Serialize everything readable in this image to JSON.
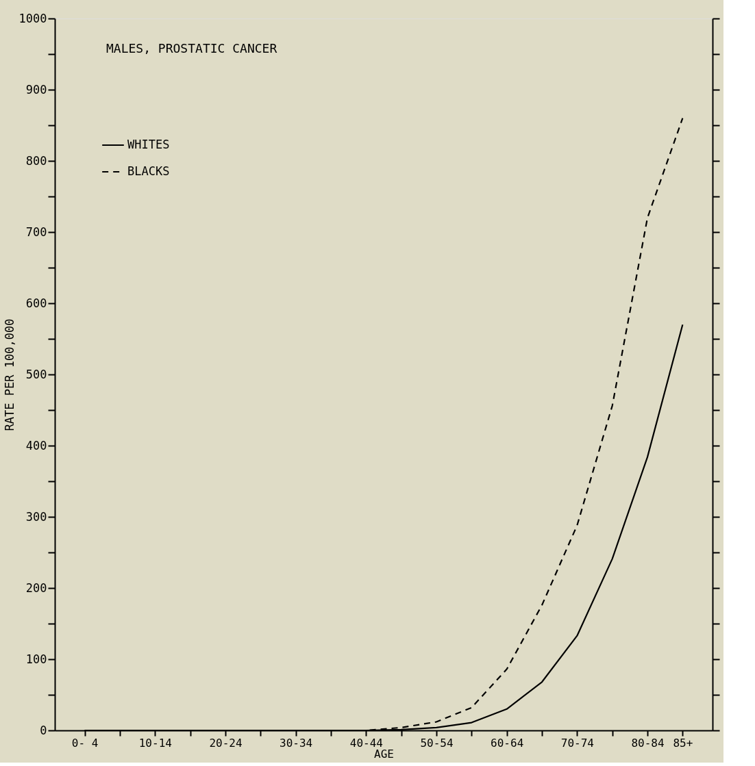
{
  "chart_data": {
    "type": "line",
    "title": "MALES, PROSTATIC CANCER",
    "xlabel": "AGE",
    "ylabel": "RATE PER 100,000",
    "categories": [
      "0- 4",
      null,
      "10-14",
      null,
      "20-24",
      null,
      "30-34",
      null,
      "40-44",
      null,
      "50-54",
      null,
      "60-64",
      null,
      "70-74",
      null,
      "80-84",
      "85+"
    ],
    "series": [
      {
        "name": "WHITES",
        "color": "#000000",
        "line_style": "solid",
        "values": [
          0,
          0,
          0,
          0,
          0,
          0,
          0,
          0,
          0,
          1,
          4,
          11,
          30,
          68,
          133,
          241,
          384,
          570
        ]
      },
      {
        "name": "BLACKS",
        "color": "#000000",
        "line_style": "dashed",
        "values": [
          0,
          0,
          0,
          0,
          0,
          0,
          0,
          0,
          0,
          4,
          12,
          32,
          86,
          176,
          288,
          456,
          720,
          860
        ]
      }
    ],
    "ylim": [
      0,
      1000
    ],
    "yticks": [
      0,
      {
        "value": 50,
        "label": null
      },
      100,
      {
        "value": 150,
        "label": null
      },
      200,
      {
        "value": 250,
        "label": null
      },
      300,
      {
        "value": 350,
        "label": null
      },
      400,
      {
        "value": 450,
        "label": null
      },
      500,
      {
        "value": 550,
        "label": null
      },
      600,
      {
        "value": 650,
        "label": null
      },
      700,
      {
        "value": 750,
        "label": null
      },
      800,
      {
        "value": 850,
        "label": null
      },
      900,
      {
        "value": 950,
        "label": null
      },
      1000
    ],
    "legend": "top left",
    "grid": false,
    "marker": "none"
  }
}
